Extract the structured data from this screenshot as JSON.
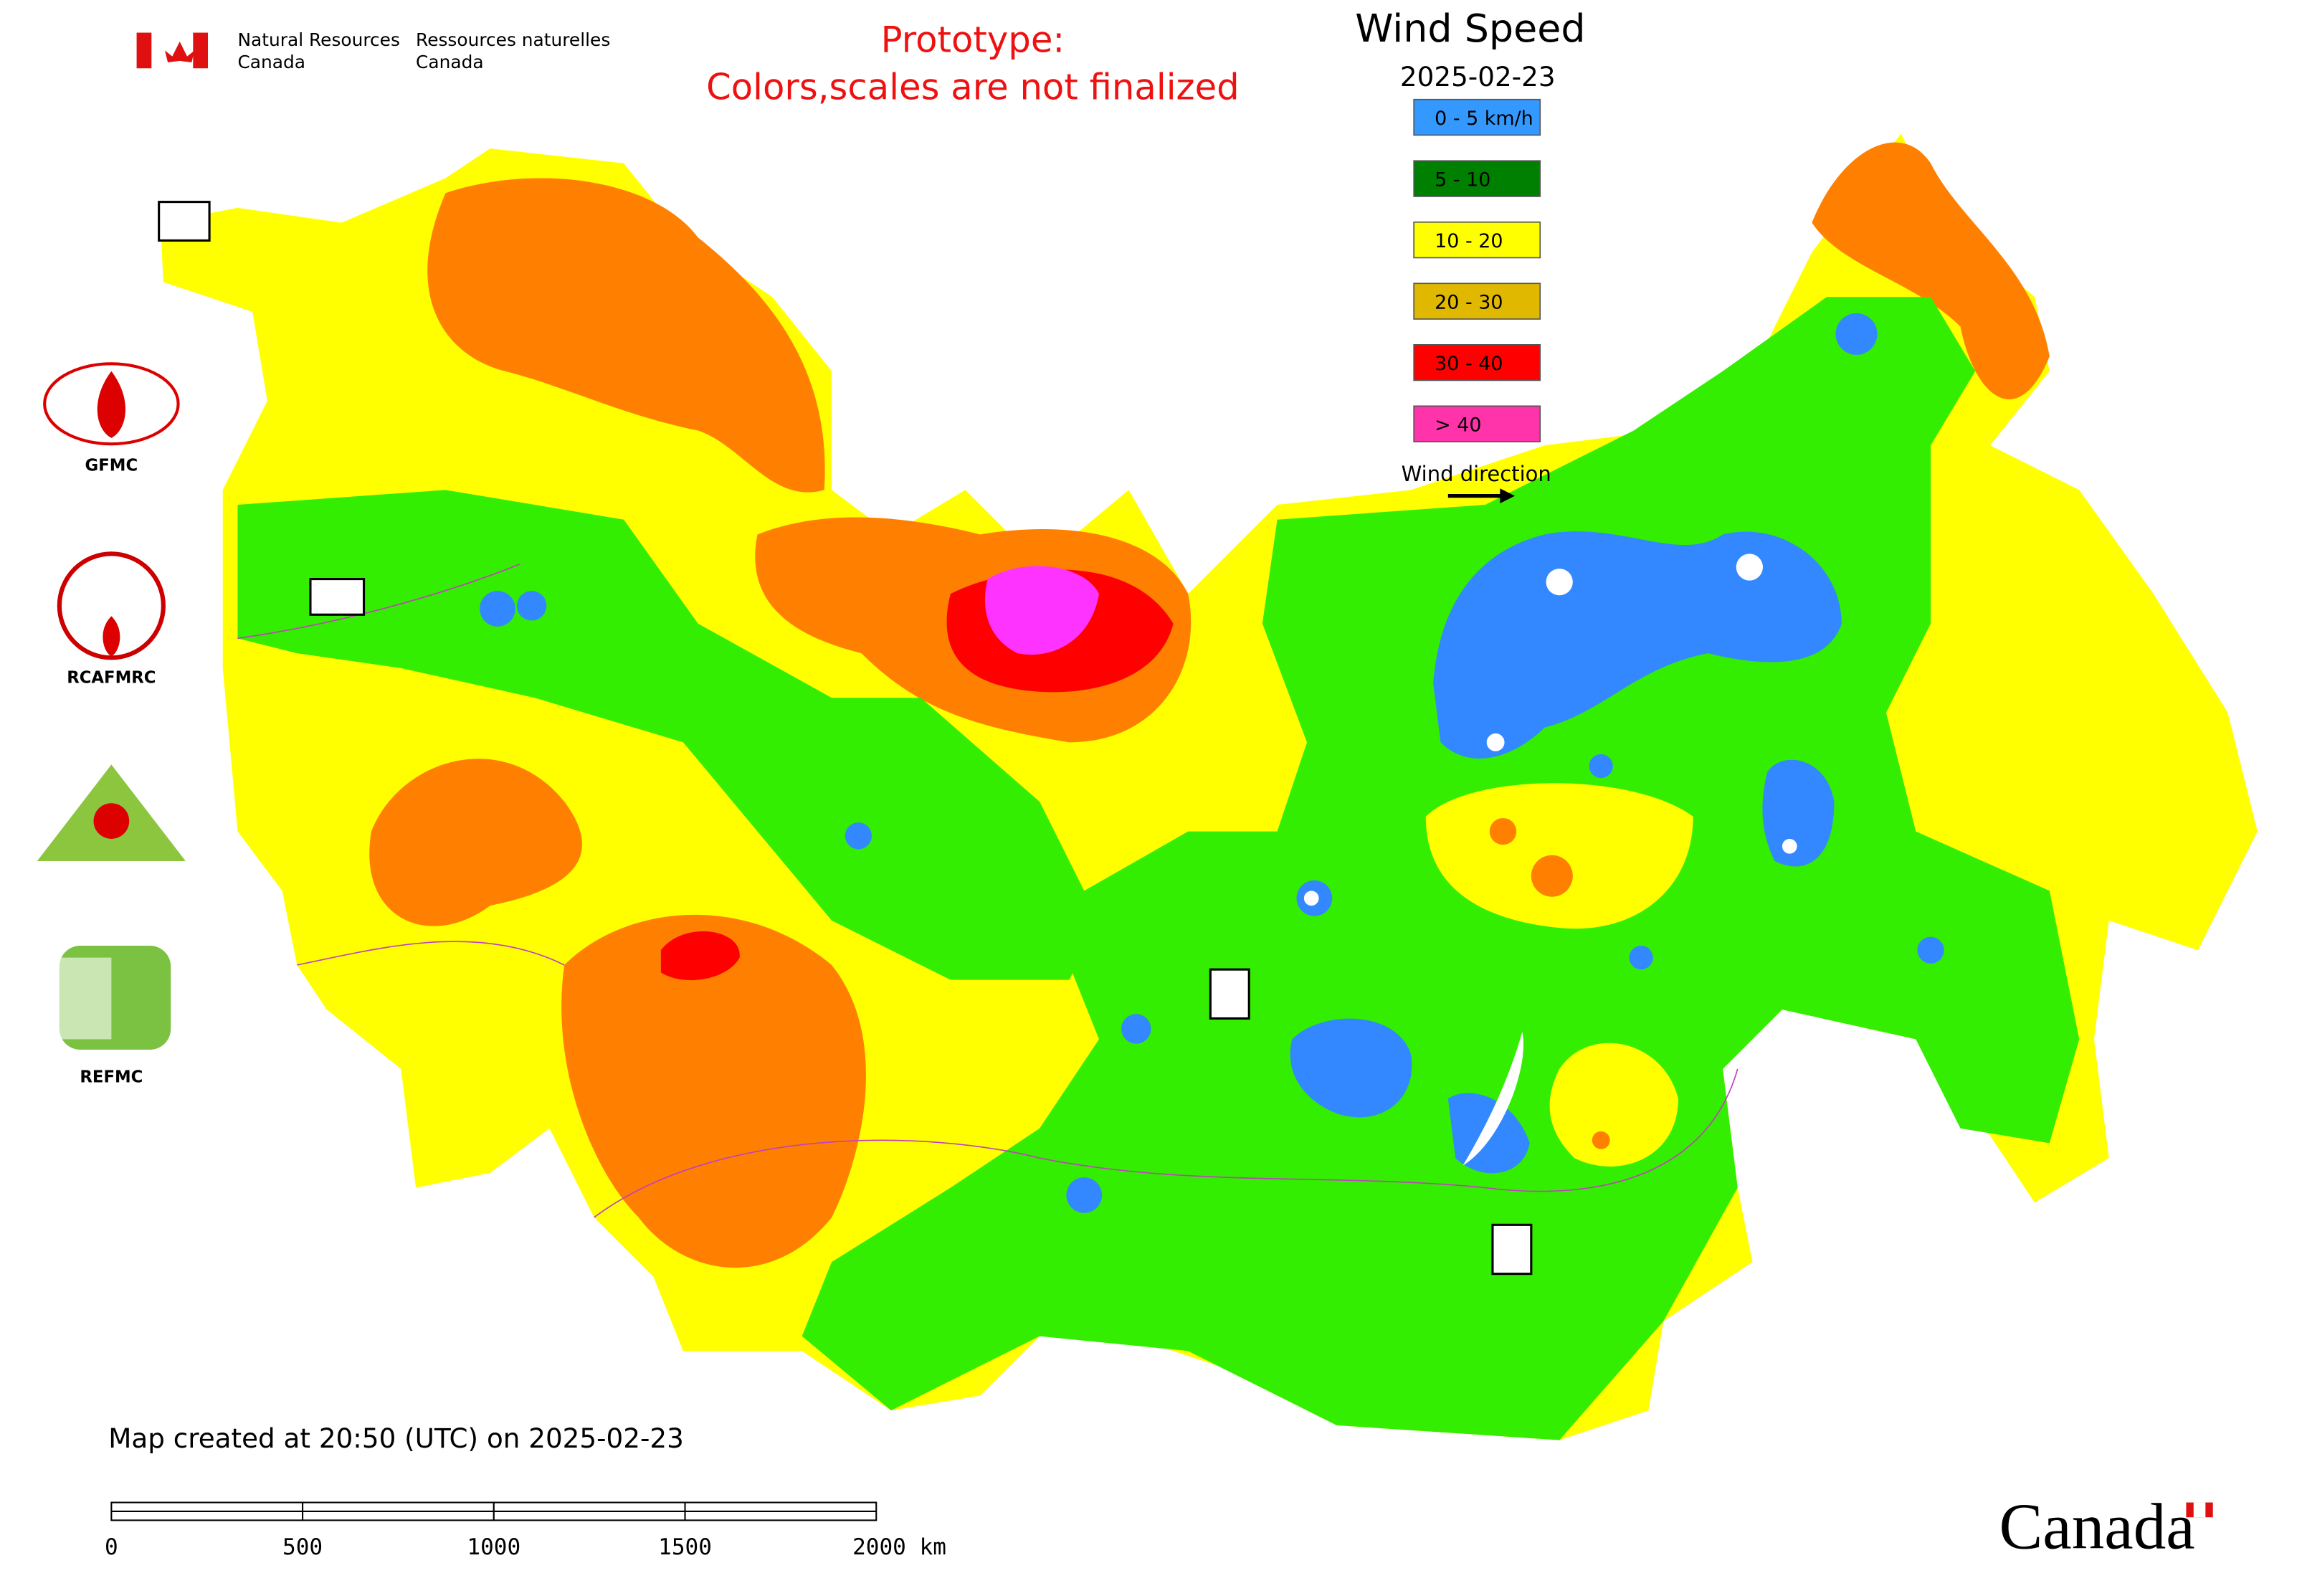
{
  "header": {
    "agency_en": [
      "Natural Resources",
      "Canada"
    ],
    "agency_fr": [
      "Ressources naturelles",
      "Canada"
    ],
    "notice": [
      "Prototype:",
      "Colors,scales are not finalized"
    ]
  },
  "legend": {
    "title": "Wind Speed",
    "date": "2025-02-23",
    "items": [
      {
        "label": "0 - 5 km/h",
        "color": "#3399ff"
      },
      {
        "label": "5 - 10",
        "color": "#008000"
      },
      {
        "label": "10 - 20",
        "color": "#ffff00"
      },
      {
        "label": "20 - 30",
        "color": "#e0b800"
      },
      {
        "label": "30 - 40",
        "color": "#ff0000"
      },
      {
        "label": "> 40",
        "color": "#ff33aa"
      }
    ],
    "direction": "Wind direction"
  },
  "logos": [
    "GFMC",
    "RCAFMRC",
    "REFMC"
  ],
  "footer": {
    "created": "Map created at 20:50 (UTC) on 2025-02-23",
    "scale_labels": [
      "0",
      "500",
      "1000",
      "1500",
      "2000 km"
    ],
    "wordmark": "Canada"
  }
}
